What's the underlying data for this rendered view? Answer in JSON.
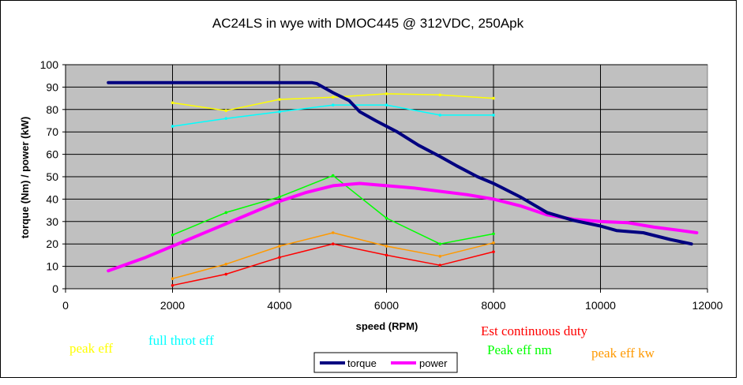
{
  "chart_data": {
    "type": "line",
    "title": "AC24LS  in wye with DMOC445 @ 312VDC, 250Apk",
    "xlabel": "speed (RPM)",
    "ylabel": "torque (Nm) / power (kW)",
    "xlim": [
      0,
      12000
    ],
    "ylim": [
      0,
      100
    ],
    "x_ticks": [
      "0",
      "2000",
      "4000",
      "6000",
      "8000",
      "10000",
      "12000"
    ],
    "y_ticks": [
      "0",
      "10",
      "20",
      "30",
      "40",
      "50",
      "60",
      "70",
      "80",
      "90",
      "100"
    ],
    "grid": true,
    "legend_position": "bottom-center",
    "series": [
      {
        "name": "torque",
        "color": "#000080",
        "in_legend": true,
        "x": [
          800,
          4600,
          4700,
          5000,
          5300,
          5500,
          5800,
          6200,
          6600,
          7000,
          7300,
          7700,
          8000,
          8500,
          9000,
          9500,
          10000,
          10300,
          10800,
          11300,
          11700
        ],
        "y": [
          92,
          92,
          91.5,
          87.5,
          84,
          79,
          75,
          70,
          64,
          59,
          55,
          50,
          47,
          41,
          34,
          30.5,
          28,
          26,
          25,
          22,
          20
        ]
      },
      {
        "name": "power",
        "color": "#FF00FF",
        "in_legend": true,
        "x": [
          800,
          1500,
          2000,
          2500,
          3000,
          3500,
          4000,
          4500,
          5000,
          5500,
          6000,
          6500,
          7000,
          7500,
          8000,
          8500,
          9000,
          9500,
          10000,
          10500,
          11000,
          11500,
          11800
        ],
        "y": [
          8,
          14,
          19,
          24,
          29,
          34,
          39,
          43,
          46,
          47,
          46,
          45,
          43.5,
          42,
          40,
          37,
          33,
          31,
          30,
          29.5,
          27.5,
          26,
          25
        ]
      },
      {
        "name": "peak eff",
        "color": "#FFFF00",
        "in_legend": false,
        "x": [
          2000,
          3000,
          4000,
          5000,
          6000,
          7000,
          8000
        ],
        "y": [
          83,
          79.5,
          84.5,
          85.5,
          87,
          86.5,
          85
        ]
      },
      {
        "name": "full throt eff",
        "color": "#00FFFF",
        "in_legend": false,
        "x": [
          2000,
          3000,
          4000,
          5000,
          6000,
          7000,
          8000
        ],
        "y": [
          72.5,
          76,
          79,
          82,
          82,
          77.5,
          77.5
        ]
      },
      {
        "name": "Peak eff nm",
        "color": "#00FF00",
        "in_legend": false,
        "x": [
          2000,
          3000,
          4000,
          5000,
          6000,
          7000,
          8000
        ],
        "y": [
          24,
          34,
          41,
          50.5,
          31.5,
          20,
          24.5
        ]
      },
      {
        "name": "peak eff kw",
        "color": "#FF9900",
        "in_legend": false,
        "x": [
          2000,
          3000,
          4000,
          5000,
          6000,
          7000,
          8000
        ],
        "y": [
          4.5,
          11,
          19,
          25,
          19,
          14.5,
          20.5
        ]
      },
      {
        "name": "Est continuous duty",
        "color": "#FF0000",
        "in_legend": false,
        "x": [
          2000,
          3000,
          4000,
          5000,
          6000,
          7000,
          8000
        ],
        "y": [
          1.5,
          6.5,
          14,
          20,
          15,
          10.5,
          16.5
        ]
      }
    ],
    "annotations": [
      {
        "text": "peak eff",
        "color": "#FFFF00"
      },
      {
        "text": "full throt eff",
        "color": "#00FFFF"
      },
      {
        "text": "Est continuous duty",
        "color": "#FF0000"
      },
      {
        "text": "Peak eff nm",
        "color": "#00FF00"
      },
      {
        "text": "peak eff kw",
        "color": "#FF9900"
      }
    ]
  }
}
